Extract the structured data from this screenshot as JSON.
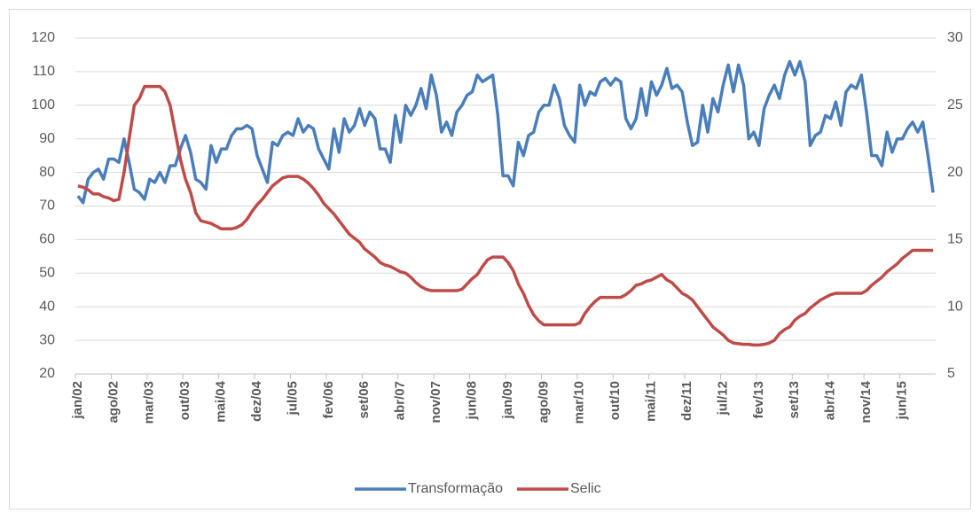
{
  "chart_data": {
    "type": "line",
    "categories": [
      "jan/02",
      null,
      null,
      null,
      null,
      null,
      null,
      "ago/02",
      null,
      null,
      null,
      null,
      null,
      null,
      "mar/03",
      null,
      null,
      null,
      null,
      null,
      null,
      "out/03",
      null,
      null,
      null,
      null,
      null,
      null,
      "mai/04",
      null,
      null,
      null,
      null,
      null,
      null,
      "dez/04",
      null,
      null,
      null,
      null,
      null,
      null,
      "jul/05",
      null,
      null,
      null,
      null,
      null,
      null,
      "fev/06",
      null,
      null,
      null,
      null,
      null,
      null,
      "set/06",
      null,
      null,
      null,
      null,
      null,
      null,
      "abr/07",
      null,
      null,
      null,
      null,
      null,
      null,
      "nov/07",
      null,
      null,
      null,
      null,
      null,
      null,
      "jun/08",
      null,
      null,
      null,
      null,
      null,
      null,
      "jan/09",
      null,
      null,
      null,
      null,
      null,
      null,
      "ago/09",
      null,
      null,
      null,
      null,
      null,
      null,
      "mar/10",
      null,
      null,
      null,
      null,
      null,
      null,
      "out/10",
      null,
      null,
      null,
      null,
      null,
      null,
      "mai/11",
      null,
      null,
      null,
      null,
      null,
      null,
      "dez/11",
      null,
      null,
      null,
      null,
      null,
      null,
      "jul/12",
      null,
      null,
      null,
      null,
      null,
      null,
      "fev/13",
      null,
      null,
      null,
      null,
      null,
      null,
      "set/13",
      null,
      null,
      null,
      null,
      null,
      null,
      "abr/14",
      null,
      null,
      null,
      null,
      null,
      null,
      "nov/14",
      null,
      null,
      null,
      null,
      null,
      null,
      "jun/15",
      null,
      null,
      null,
      null,
      null,
      null
    ],
    "series": [
      {
        "name": "Transformação",
        "color": "#4a7ebb",
        "values": [
          73,
          71,
          78,
          80,
          81,
          78,
          84,
          84,
          83,
          90,
          83,
          75,
          74,
          72,
          78,
          77,
          80,
          77,
          82,
          82,
          87,
          91,
          86,
          78,
          77,
          75,
          88,
          83,
          87,
          87,
          91,
          93,
          93,
          94,
          93,
          85,
          81,
          77,
          89,
          88,
          91,
          92,
          91,
          96,
          92,
          94,
          93,
          87,
          84,
          81,
          93,
          86,
          96,
          92,
          94,
          99,
          94,
          98,
          96,
          87,
          87,
          83,
          97,
          89,
          100,
          97,
          100,
          105,
          99,
          109,
          103,
          92,
          95,
          91,
          98,
          100,
          103,
          104,
          109,
          107,
          108,
          109,
          97,
          79,
          79,
          76,
          89,
          85,
          91,
          92,
          98,
          100,
          100,
          106,
          102,
          94,
          91,
          89,
          106,
          100,
          104,
          103,
          107,
          108,
          106,
          108,
          107,
          96,
          93,
          96,
          105,
          97,
          107,
          103,
          106,
          111,
          105,
          106,
          104,
          95,
          88,
          89,
          100,
          92,
          102,
          98,
          106,
          112,
          104,
          112,
          106,
          90,
          92,
          88,
          99,
          103,
          106,
          102,
          109,
          113,
          109,
          113,
          107,
          88,
          91,
          92,
          97,
          96,
          101,
          94,
          104,
          106,
          105,
          109,
          98,
          85,
          85,
          82,
          92,
          86,
          90,
          90,
          93,
          95,
          92,
          95,
          85,
          74
        ]
      },
      {
        "name": "Selic",
        "color": "#be4b48",
        "axis": "y2",
        "values": [
          19.0,
          18.9,
          18.7,
          18.4,
          18.4,
          18.2,
          18.1,
          17.9,
          18.0,
          20.0,
          22.5,
          25.0,
          25.5,
          26.4,
          26.4,
          26.4,
          26.4,
          26.0,
          25.0,
          23.0,
          21.0,
          19.5,
          18.5,
          17.0,
          16.4,
          16.3,
          16.2,
          16.0,
          15.8,
          15.8,
          15.8,
          15.9,
          16.1,
          16.5,
          17.1,
          17.6,
          18.0,
          18.5,
          19.0,
          19.3,
          19.6,
          19.7,
          19.7,
          19.7,
          19.5,
          19.2,
          18.8,
          18.3,
          17.7,
          17.3,
          16.9,
          16.4,
          15.9,
          15.4,
          15.1,
          14.8,
          14.3,
          14.0,
          13.7,
          13.3,
          13.1,
          13.0,
          12.8,
          12.6,
          12.5,
          12.2,
          11.8,
          11.5,
          11.3,
          11.2,
          11.2,
          11.2,
          11.2,
          11.2,
          11.2,
          11.3,
          11.7,
          12.1,
          12.4,
          13.0,
          13.5,
          13.7,
          13.7,
          13.7,
          13.3,
          12.7,
          11.7,
          11.0,
          10.1,
          9.4,
          8.95,
          8.65,
          8.65,
          8.65,
          8.65,
          8.65,
          8.65,
          8.65,
          8.8,
          9.5,
          10.0,
          10.4,
          10.7,
          10.7,
          10.7,
          10.7,
          10.7,
          10.9,
          11.2,
          11.6,
          11.7,
          11.9,
          12.0,
          12.2,
          12.4,
          12.0,
          11.8,
          11.4,
          11.0,
          10.8,
          10.5,
          10.0,
          9.5,
          9.0,
          8.5,
          8.2,
          7.9,
          7.5,
          7.3,
          7.25,
          7.2,
          7.2,
          7.15,
          7.15,
          7.2,
          7.3,
          7.5,
          8.0,
          8.3,
          8.5,
          9.0,
          9.3,
          9.5,
          9.9,
          10.2,
          10.5,
          10.7,
          10.9,
          11.0,
          11.0,
          11.0,
          11.0,
          11.0,
          11.0,
          11.2,
          11.6,
          11.9,
          12.2,
          12.6,
          12.9,
          13.2,
          13.6,
          13.9,
          14.2,
          14.2,
          14.2,
          14.2,
          14.2
        ]
      }
    ],
    "ylim": [
      20,
      120
    ],
    "yticks": [
      20,
      30,
      40,
      50,
      60,
      70,
      80,
      90,
      100,
      110,
      120
    ],
    "y2lim": [
      5,
      30
    ],
    "y2ticks": [
      5,
      10,
      15,
      20,
      25,
      30
    ],
    "grid": true,
    "legend": "bottom"
  }
}
